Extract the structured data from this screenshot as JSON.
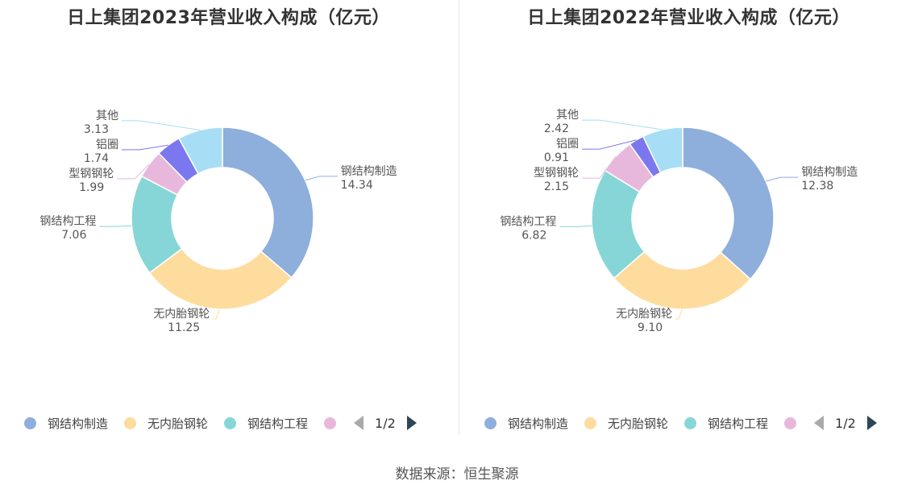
{
  "colors": [
    "#8eaedc",
    "#fedc9e",
    "#86d6d8",
    "#e8b8dc",
    "#7b78ef",
    "#a8def5"
  ],
  "chart_data": [
    {
      "type": "pie",
      "title": "日上集团2023年营业收入构成（亿元）",
      "categories": [
        "钢结构制造",
        "无内胎钢轮",
        "钢结构工程",
        "型钢钢轮",
        "铝圈",
        "其他"
      ],
      "values": [
        14.34,
        11.25,
        7.06,
        1.99,
        1.74,
        3.13
      ],
      "value_labels": [
        "14.34",
        "11.25",
        "7.06",
        "1.99",
        "1.74",
        "3.13"
      ],
      "legend": {
        "items": [
          "钢结构制造",
          "无内胎钢轮",
          "钢结构工程"
        ],
        "page": "1/2",
        "position": "bottom"
      }
    },
    {
      "type": "pie",
      "title": "日上集团2022年营业收入构成（亿元）",
      "categories": [
        "钢结构制造",
        "无内胎钢轮",
        "钢结构工程",
        "型钢钢轮",
        "铝圈",
        "其他"
      ],
      "values": [
        12.38,
        9.1,
        6.82,
        2.15,
        0.91,
        2.42
      ],
      "value_labels": [
        "12.38",
        "9.10",
        "6.82",
        "2.15",
        "0.91",
        "2.42"
      ],
      "legend": {
        "items": [
          "钢结构制造",
          "无内胎钢轮",
          "钢结构工程"
        ],
        "page": "1/2",
        "position": "bottom"
      }
    }
  ],
  "source": "数据来源：恒生聚源"
}
